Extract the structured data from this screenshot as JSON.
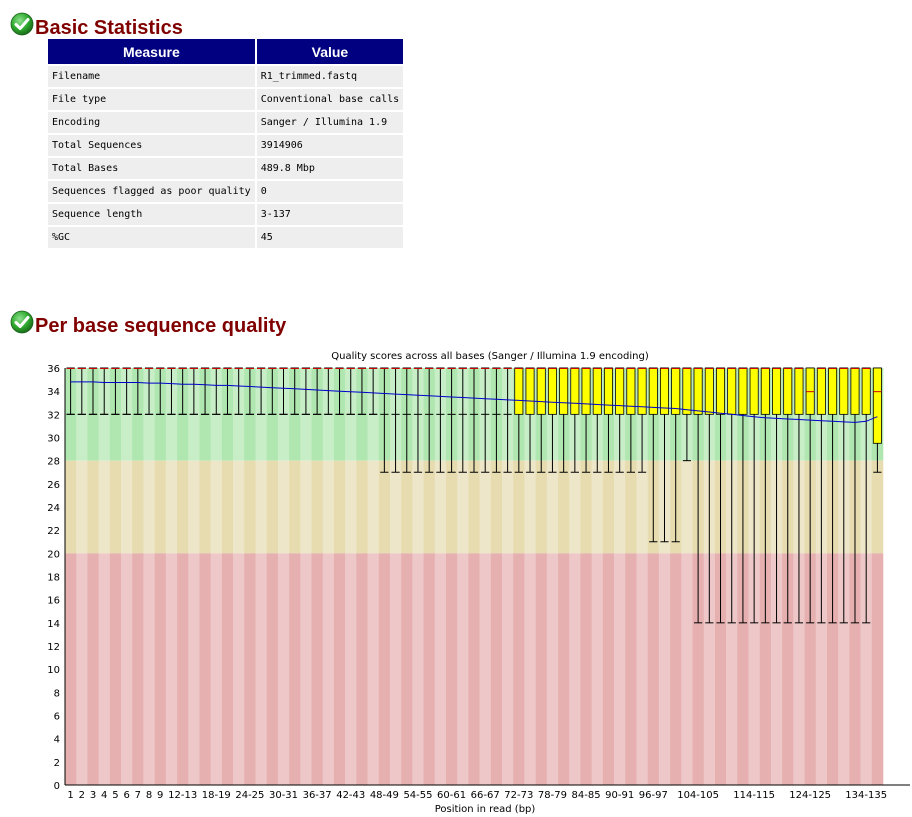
{
  "sections": [
    {
      "title": "Basic Statistics",
      "status": "pass",
      "icon": "check-icon"
    },
    {
      "title": "Per base sequence quality",
      "status": "pass",
      "icon": "check-icon"
    }
  ],
  "basic_stats": {
    "headers": [
      "Measure",
      "Value"
    ],
    "rows": [
      [
        "Filename",
        "R1_trimmed.fastq"
      ],
      [
        "File type",
        "Conventional base calls"
      ],
      [
        "Encoding",
        "Sanger / Illumina 1.9"
      ],
      [
        "Total Sequences",
        "3914906"
      ],
      [
        "Total Bases",
        "489.8 Mbp"
      ],
      [
        "Sequences flagged as poor quality",
        "0"
      ],
      [
        "Sequence length",
        "3-137"
      ],
      [
        "%GC",
        "45"
      ]
    ]
  },
  "chart_data": {
    "type": "boxplot",
    "title": "Quality scores across all bases (Sanger / Illumina 1.9 encoding)",
    "xlabel": "Position in read (bp)",
    "ylabel": "",
    "ylim": [
      0,
      36
    ],
    "yticks": [
      0,
      2,
      4,
      6,
      8,
      10,
      12,
      14,
      16,
      18,
      20,
      22,
      24,
      26,
      28,
      30,
      32,
      34,
      36
    ],
    "bands": [
      {
        "from": 28,
        "to": 36,
        "colors": [
          "#b0e6b0",
          "#c8eec8"
        ]
      },
      {
        "from": 20,
        "to": 28,
        "colors": [
          "#e6dcb0",
          "#eee6c8"
        ]
      },
      {
        "from": 0,
        "to": 20,
        "colors": [
          "#e6b0b0",
          "#eec8c8"
        ]
      }
    ],
    "colors": {
      "box": "#ffff00",
      "mean_line": "#0000cc",
      "median": "#cc0000",
      "whisker": "#000000"
    },
    "categories": [
      "1",
      "2",
      "3",
      "4",
      "5",
      "6",
      "7",
      "8",
      "9",
      "10-11",
      "12-13",
      "14-15",
      "16-17",
      "18-19",
      "20-21",
      "22-23",
      "24-25",
      "26-27",
      "28-29",
      "30-31",
      "32-33",
      "34-35",
      "36-37",
      "38-39",
      "40-41",
      "42-43",
      "44-45",
      "46-47",
      "48-49",
      "50-51",
      "52-53",
      "54-55",
      "56-57",
      "58-59",
      "60-61",
      "62-63",
      "64-65",
      "66-67",
      "68-69",
      "70-71",
      "72-73",
      "74-75",
      "76-77",
      "78-79",
      "80-81",
      "82-83",
      "84-85",
      "86-87",
      "88-89",
      "90-91",
      "92-93",
      "94-95",
      "96-97",
      "98-99",
      "100-101",
      "102-103",
      "104-105",
      "106-107",
      "108-109",
      "110-111",
      "112-113",
      "114-115",
      "116-117",
      "118-119",
      "120-121",
      "122-123",
      "124-125",
      "126-127",
      "128-129",
      "130-131",
      "132-133",
      "134-135",
      "136-137"
    ],
    "xtick_labels": [
      "1",
      "2",
      "3",
      "4",
      "5",
      "6",
      "7",
      "8",
      "9",
      "12-13",
      "18-19",
      "24-25",
      "30-31",
      "36-37",
      "42-43",
      "48-49",
      "54-55",
      "60-61",
      "66-67",
      "72-73",
      "78-79",
      "84-85",
      "90-91",
      "96-97",
      "104-105",
      "114-115",
      "124-125",
      "134-135"
    ],
    "q1": [
      32,
      32,
      32,
      32,
      32,
      32,
      32,
      32,
      32,
      32,
      32,
      32,
      32,
      32,
      32,
      32,
      32,
      32,
      32,
      32,
      32,
      32,
      32,
      32,
      32,
      32,
      32,
      32,
      32,
      32,
      32,
      32,
      32,
      32,
      32,
      32,
      32,
      32,
      32,
      32,
      32,
      32,
      32,
      32,
      32,
      32,
      32,
      32,
      32,
      32,
      32,
      32,
      32,
      32,
      32,
      32,
      32,
      32,
      32,
      32,
      32,
      32,
      32,
      32,
      32,
      32,
      32,
      32,
      32,
      32,
      32,
      32,
      29.5
    ],
    "median": [
      36,
      36,
      36,
      36,
      36,
      36,
      36,
      36,
      36,
      36,
      36,
      36,
      36,
      36,
      36,
      36,
      36,
      36,
      36,
      36,
      36,
      36,
      36,
      36,
      36,
      36,
      36,
      36,
      36,
      36,
      36,
      36,
      36,
      36,
      36,
      36,
      36,
      36,
      36,
      36,
      36,
      36,
      36,
      36,
      36,
      36,
      36,
      36,
      36,
      36,
      36,
      36,
      36,
      36,
      36,
      36,
      36,
      36,
      36,
      36,
      36,
      36,
      36,
      36,
      36,
      36,
      34,
      36,
      36,
      36,
      36,
      36,
      34
    ],
    "q3": [
      36,
      36,
      36,
      36,
      36,
      36,
      36,
      36,
      36,
      36,
      36,
      36,
      36,
      36,
      36,
      36,
      36,
      36,
      36,
      36,
      36,
      36,
      36,
      36,
      36,
      36,
      36,
      36,
      36,
      36,
      36,
      36,
      36,
      36,
      36,
      36,
      36,
      36,
      36,
      36,
      36,
      36,
      36,
      36,
      36,
      36,
      36,
      36,
      36,
      36,
      36,
      36,
      36,
      36,
      36,
      36,
      36,
      36,
      36,
      36,
      36,
      36,
      36,
      36,
      36,
      36,
      36,
      36,
      36,
      36,
      36,
      36,
      36
    ],
    "whisker_low": [
      32,
      32,
      32,
      32,
      32,
      32,
      32,
      32,
      32,
      32,
      32,
      32,
      32,
      32,
      32,
      32,
      32,
      32,
      32,
      32,
      32,
      32,
      32,
      32,
      32,
      32,
      32,
      32,
      27,
      27,
      27,
      27,
      27,
      27,
      27,
      27,
      27,
      27,
      27,
      27,
      27,
      27,
      27,
      27,
      27,
      27,
      27,
      27,
      27,
      27,
      27,
      27,
      21,
      21,
      21,
      28,
      14,
      14,
      14,
      14,
      14,
      14,
      14,
      14,
      14,
      14,
      14,
      14,
      14,
      14,
      14,
      14,
      27
    ],
    "whisker_high": [
      36,
      36,
      36,
      36,
      36,
      36,
      36,
      36,
      36,
      36,
      36,
      36,
      36,
      36,
      36,
      36,
      36,
      36,
      36,
      36,
      36,
      36,
      36,
      36,
      36,
      36,
      36,
      36,
      36,
      36,
      36,
      36,
      36,
      36,
      36,
      36,
      36,
      36,
      36,
      36,
      36,
      36,
      36,
      36,
      36,
      36,
      36,
      36,
      36,
      36,
      36,
      36,
      36,
      36,
      36,
      36,
      36,
      36,
      36,
      36,
      36,
      36,
      36,
      36,
      36,
      36,
      36,
      36,
      36,
      36,
      36,
      36,
      36
    ],
    "mean": [
      34.8,
      34.8,
      34.8,
      34.75,
      34.75,
      34.75,
      34.75,
      34.7,
      34.7,
      34.65,
      34.6,
      34.6,
      34.55,
      34.5,
      34.5,
      34.45,
      34.4,
      34.35,
      34.3,
      34.25,
      34.2,
      34.15,
      34.1,
      34.05,
      34.0,
      33.95,
      33.9,
      33.85,
      33.8,
      33.75,
      33.7,
      33.65,
      33.6,
      33.55,
      33.5,
      33.45,
      33.4,
      33.35,
      33.3,
      33.25,
      33.2,
      33.15,
      33.1,
      33.05,
      33.0,
      32.95,
      32.9,
      32.85,
      32.8,
      32.75,
      32.7,
      32.65,
      32.6,
      32.55,
      32.5,
      32.4,
      32.3,
      32.2,
      32.1,
      32.0,
      31.9,
      31.8,
      31.7,
      31.65,
      31.6,
      31.55,
      31.5,
      31.45,
      31.4,
      31.35,
      31.3,
      31.4,
      31.8
    ]
  }
}
